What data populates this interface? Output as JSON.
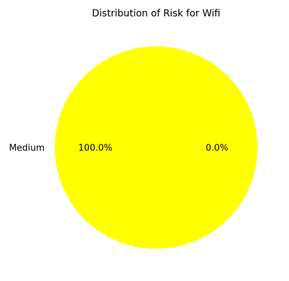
{
  "chart_data": {
    "type": "pie",
    "title": "Distribution of Risk for Wifi",
    "slices": [
      {
        "label": "Medium",
        "value": 100.0,
        "pct_label": "100.0%",
        "color": "#ffff00"
      },
      {
        "label": "",
        "value": 0.0,
        "pct_label": "0.0%",
        "color": "#ffff00"
      }
    ],
    "legend": false
  }
}
